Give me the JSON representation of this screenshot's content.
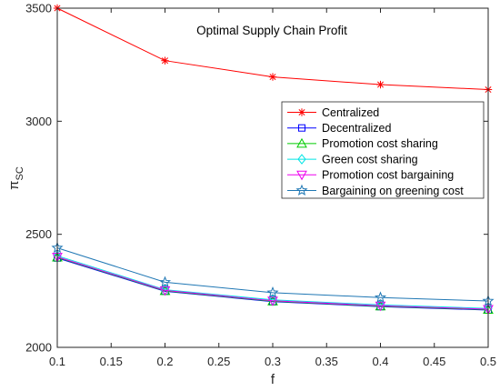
{
  "chart_data": {
    "type": "line",
    "title": "Optimal Supply Chain Profit",
    "xlabel": "f",
    "ylabel_main": "π",
    "ylabel_sub": "SC",
    "x": [
      0.1,
      0.2,
      0.3,
      0.4,
      0.5
    ],
    "xlim": [
      0.1,
      0.5
    ],
    "ylim": [
      2000,
      3500
    ],
    "x_ticks": [
      "0.1",
      "0.15",
      "0.2",
      "0.25",
      "0.3",
      "0.35",
      "0.4",
      "0.45",
      "0.5"
    ],
    "x_tick_values": [
      0.1,
      0.15,
      0.2,
      0.25,
      0.3,
      0.35,
      0.4,
      0.45,
      0.5
    ],
    "y_ticks": [
      "2000",
      "2500",
      "3000",
      "3500"
    ],
    "y_tick_values": [
      2000,
      2500,
      3000,
      3500
    ],
    "grid": false,
    "legend_position": "right",
    "series": [
      {
        "name": "Centralized",
        "color": "#ff0000",
        "marker": "asterisk",
        "values": [
          3500,
          3268,
          3196,
          3162,
          3140
        ]
      },
      {
        "name": "Decentralized",
        "color": "#0000ff",
        "marker": "square",
        "values": [
          2395,
          2248,
          2202,
          2180,
          2165
        ]
      },
      {
        "name": "Promotion cost sharing",
        "color": "#00cc00",
        "marker": "triangle-up",
        "values": [
          2398,
          2250,
          2204,
          2182,
          2167
        ]
      },
      {
        "name": "Green cost sharing",
        "color": "#00e5e5",
        "marker": "diamond",
        "values": [
          2405,
          2255,
          2210,
          2188,
          2172
        ]
      },
      {
        "name": "Promotion cost bargaining",
        "color": "#ee00ee",
        "marker": "triangle-down",
        "values": [
          2400,
          2252,
          2206,
          2184,
          2169
        ]
      },
      {
        "name": "Bargaining on greening cost",
        "color": "#1f77b4",
        "marker": "star",
        "values": [
          2440,
          2288,
          2242,
          2220,
          2205
        ]
      }
    ]
  }
}
